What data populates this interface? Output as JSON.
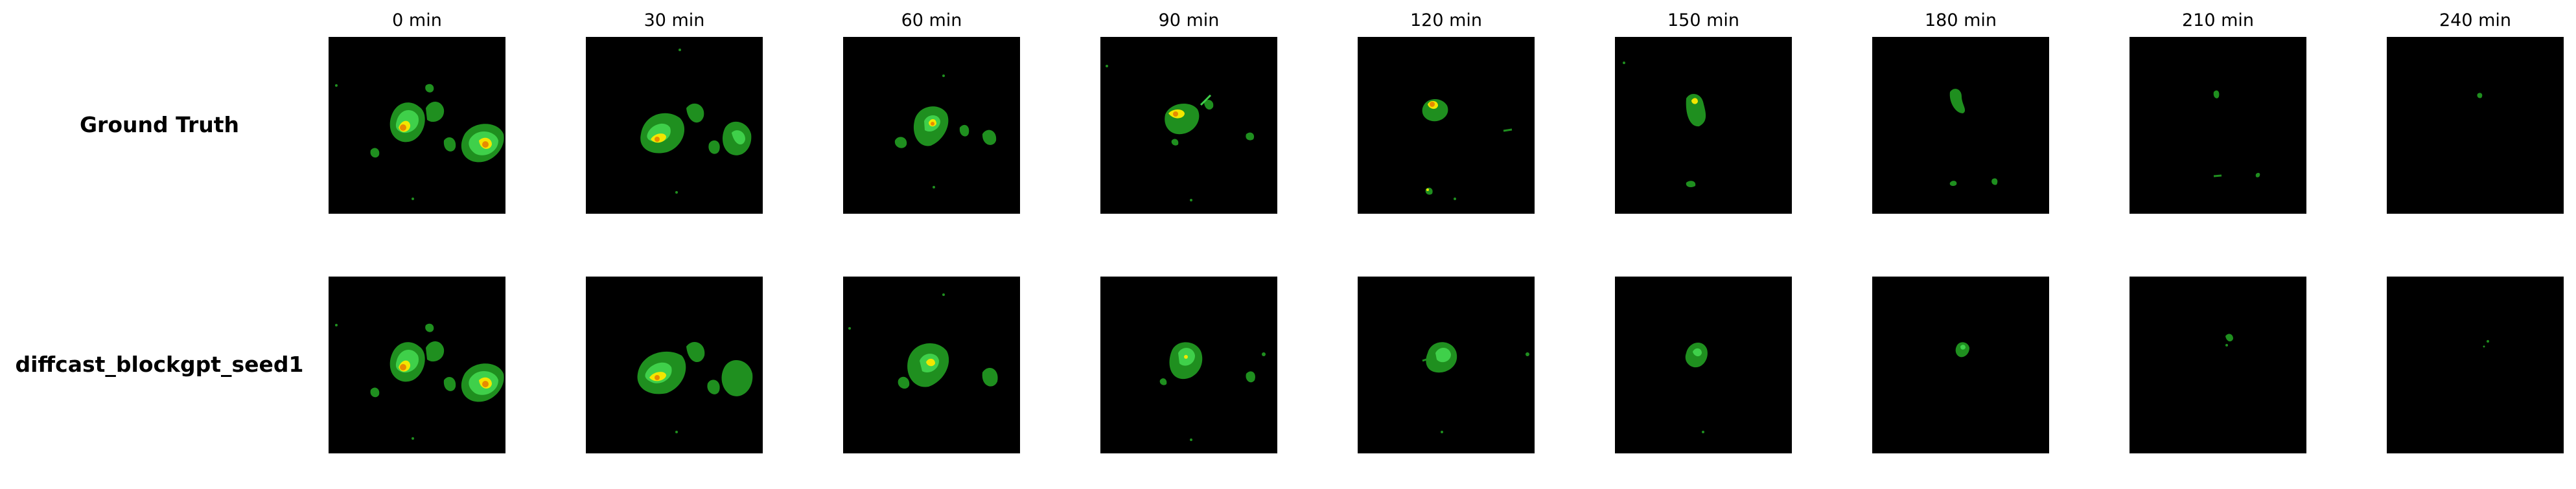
{
  "column_titles": [
    "0 min",
    "30 min",
    "60 min",
    "90 min",
    "120 min",
    "150 min",
    "180 min",
    "210 min",
    "240 min"
  ],
  "rows": [
    {
      "label": "Ground Truth"
    },
    {
      "label": "diffcast_blockgpt_seed1"
    }
  ],
  "colors": {
    "background": "#000000",
    "low_intensity": "#1f8f1f",
    "mid_intensity": "#3fd04a",
    "high_intensity": "#f2e600",
    "peak_intensity": "#e88a00"
  }
}
